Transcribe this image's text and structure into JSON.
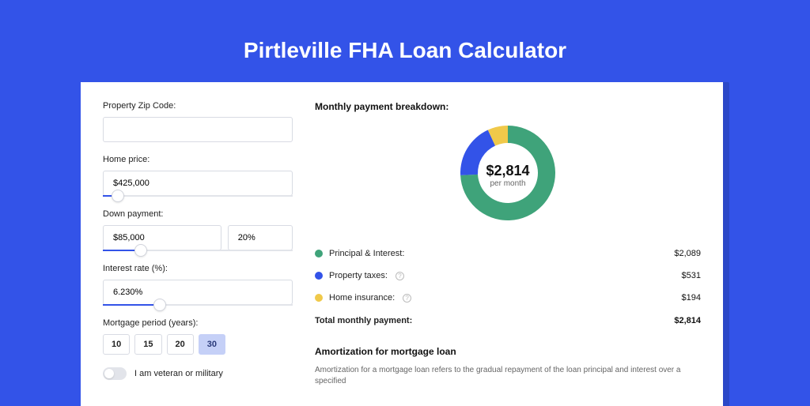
{
  "page": {
    "title": "Pirtleville FHA Loan Calculator",
    "background_color": "#3353e8",
    "card_shadow_color": "#2b48c8"
  },
  "form": {
    "zip": {
      "label": "Property Zip Code:",
      "value": ""
    },
    "home_price": {
      "label": "Home price:",
      "value": "$425,000",
      "slider_percent": 8
    },
    "down_payment": {
      "label": "Down payment:",
      "value": "$85,000",
      "percent_value": "20%",
      "slider_percent": 20
    },
    "interest_rate": {
      "label": "Interest rate (%):",
      "value": "6.230%",
      "slider_percent": 30
    },
    "mortgage_period": {
      "label": "Mortgage period (years):",
      "options": [
        "10",
        "15",
        "20",
        "30"
      ],
      "active": "30"
    },
    "veteran": {
      "label": "I am veteran or military",
      "checked": false
    }
  },
  "breakdown": {
    "title": "Monthly payment breakdown:",
    "donut": {
      "amount": "$2,814",
      "sub": "per month",
      "segments": [
        {
          "label": "Principal & Interest",
          "color": "#3fa37a",
          "value": 2089
        },
        {
          "label": "Property taxes",
          "color": "#3353e8",
          "value": 531
        },
        {
          "label": "Home insurance",
          "color": "#f0c94a",
          "value": 194
        }
      ],
      "inner_radius": 38,
      "outer_radius": 60
    },
    "rows": [
      {
        "dot": "#3fa37a",
        "label": "Principal & Interest:",
        "info": false,
        "value": "$2,089"
      },
      {
        "dot": "#3353e8",
        "label": "Property taxes:",
        "info": true,
        "value": "$531"
      },
      {
        "dot": "#f0c94a",
        "label": "Home insurance:",
        "info": true,
        "value": "$194"
      }
    ],
    "total": {
      "label": "Total monthly payment:",
      "value": "$2,814"
    }
  },
  "amortization": {
    "title": "Amortization for mortgage loan",
    "text": "Amortization for a mortgage loan refers to the gradual repayment of the loan principal and interest over a specified"
  }
}
